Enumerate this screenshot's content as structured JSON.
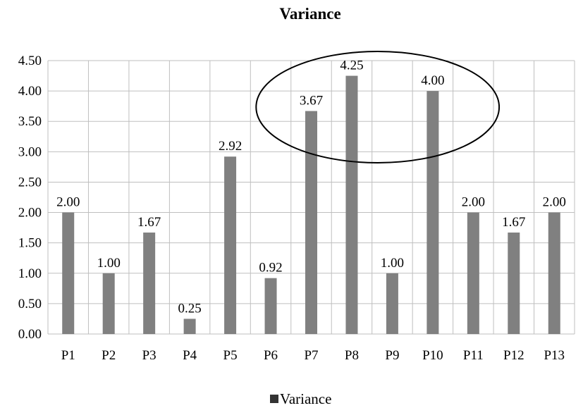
{
  "chart_data": {
    "type": "bar",
    "title": "Variance",
    "xlabel": "",
    "ylabel": "",
    "categories": [
      "P1",
      "P2",
      "P3",
      "P4",
      "P5",
      "P6",
      "P7",
      "P8",
      "P9",
      "P10",
      "P11",
      "P12",
      "P13"
    ],
    "series": [
      {
        "name": "Variance",
        "values": [
          2.0,
          1.0,
          1.67,
          0.25,
          2.92,
          0.92,
          3.67,
          4.25,
          1.0,
          4.0,
          2.0,
          1.67,
          2.0
        ],
        "data_labels": [
          "2.00",
          "1.00",
          "1.67",
          "0.25",
          "2.92",
          "0.92",
          "3.67",
          "4.25",
          "1.00",
          "4.00",
          "2.00",
          "1.67",
          "2.00"
        ],
        "color": "#808080"
      }
    ],
    "ylim": [
      0,
      4.5
    ],
    "y_ticks": [
      "0.00",
      "0.50",
      "1.00",
      "1.50",
      "2.00",
      "2.50",
      "3.00",
      "3.50",
      "4.00",
      "4.50"
    ],
    "grid": true,
    "gridline_color": "#bfbfbf",
    "legend_position": "bottom",
    "annotation": {
      "shape": "ellipse",
      "encloses": [
        "P7",
        "P8",
        "P9",
        "P10"
      ],
      "color": "#000000"
    }
  }
}
